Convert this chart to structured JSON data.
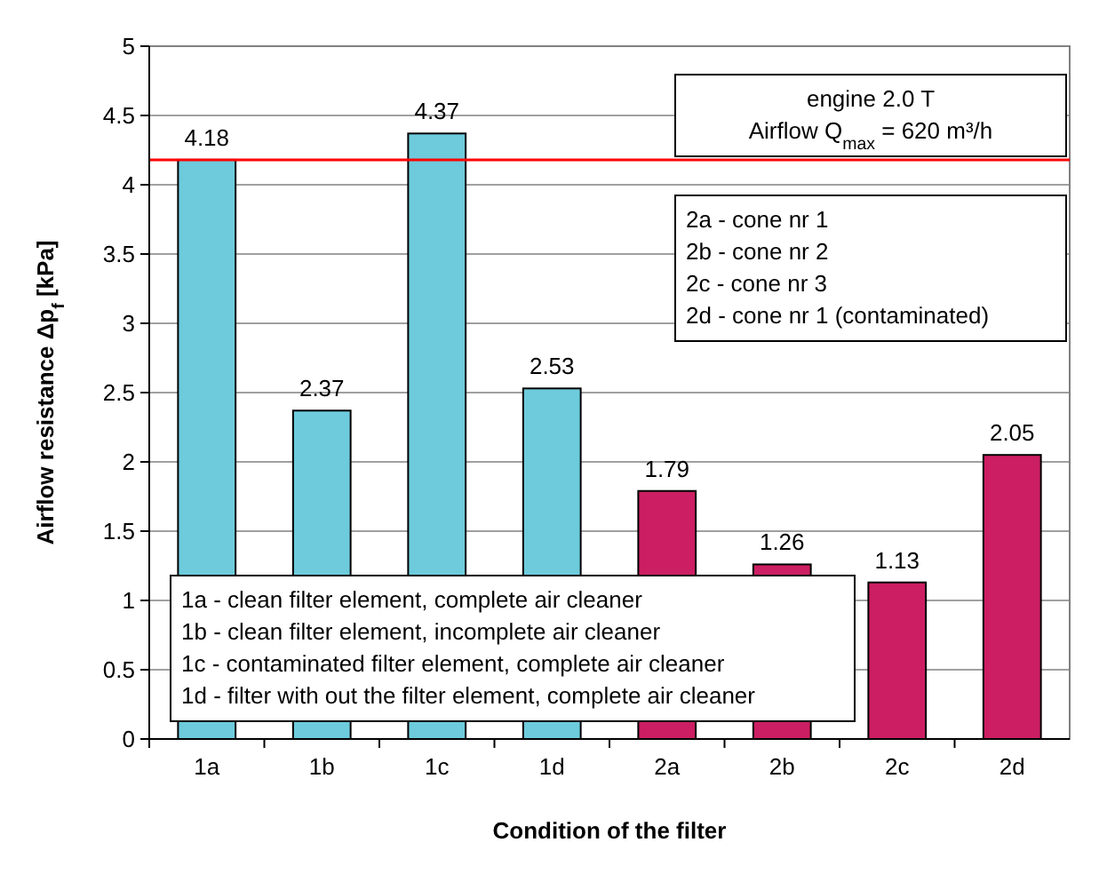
{
  "chart_data": {
    "type": "bar",
    "xlabel": "Condition of the filter",
    "ylabel": "Airflow resistance Δp$_{f}$ [kPa]",
    "categories": [
      "1a",
      "1b",
      "1c",
      "1d",
      "2a",
      "2b",
      "2c",
      "2d"
    ],
    "values": [
      4.18,
      2.37,
      4.37,
      2.53,
      1.79,
      1.26,
      1.13,
      2.05
    ],
    "colors": [
      "#6dcbdc",
      "#6dcbdc",
      "#6dcbdc",
      "#6dcbdc",
      "#cc1e62",
      "#cc1e62",
      "#cc1e62",
      "#cc1e62"
    ],
    "data_labels": true,
    "ylim": [
      0,
      5
    ],
    "yticks": [
      0,
      0.5,
      1,
      1.5,
      2,
      2.5,
      3,
      3.5,
      4,
      4.5,
      5
    ],
    "grid": "y",
    "ref_lines": [
      {
        "axis": "y",
        "value": 4.18,
        "color": "#ff0000"
      }
    ],
    "annotations": [
      "engine 2.0 T\nAirflow $_{}$Q$_{max}$ = 620 m³/h",
      "2a - cone nr 1\n2b - cone nr 2\n2c - cone nr 3\n2d - cone nr 1 (contaminated)",
      "1a - clean filter element, complete air cleaner\n1b - clean filter element, incomplete air cleaner\n1c - contaminated filter element, complete air cleaner\n1d - filter with out the filter element, complete air cleaner"
    ]
  }
}
